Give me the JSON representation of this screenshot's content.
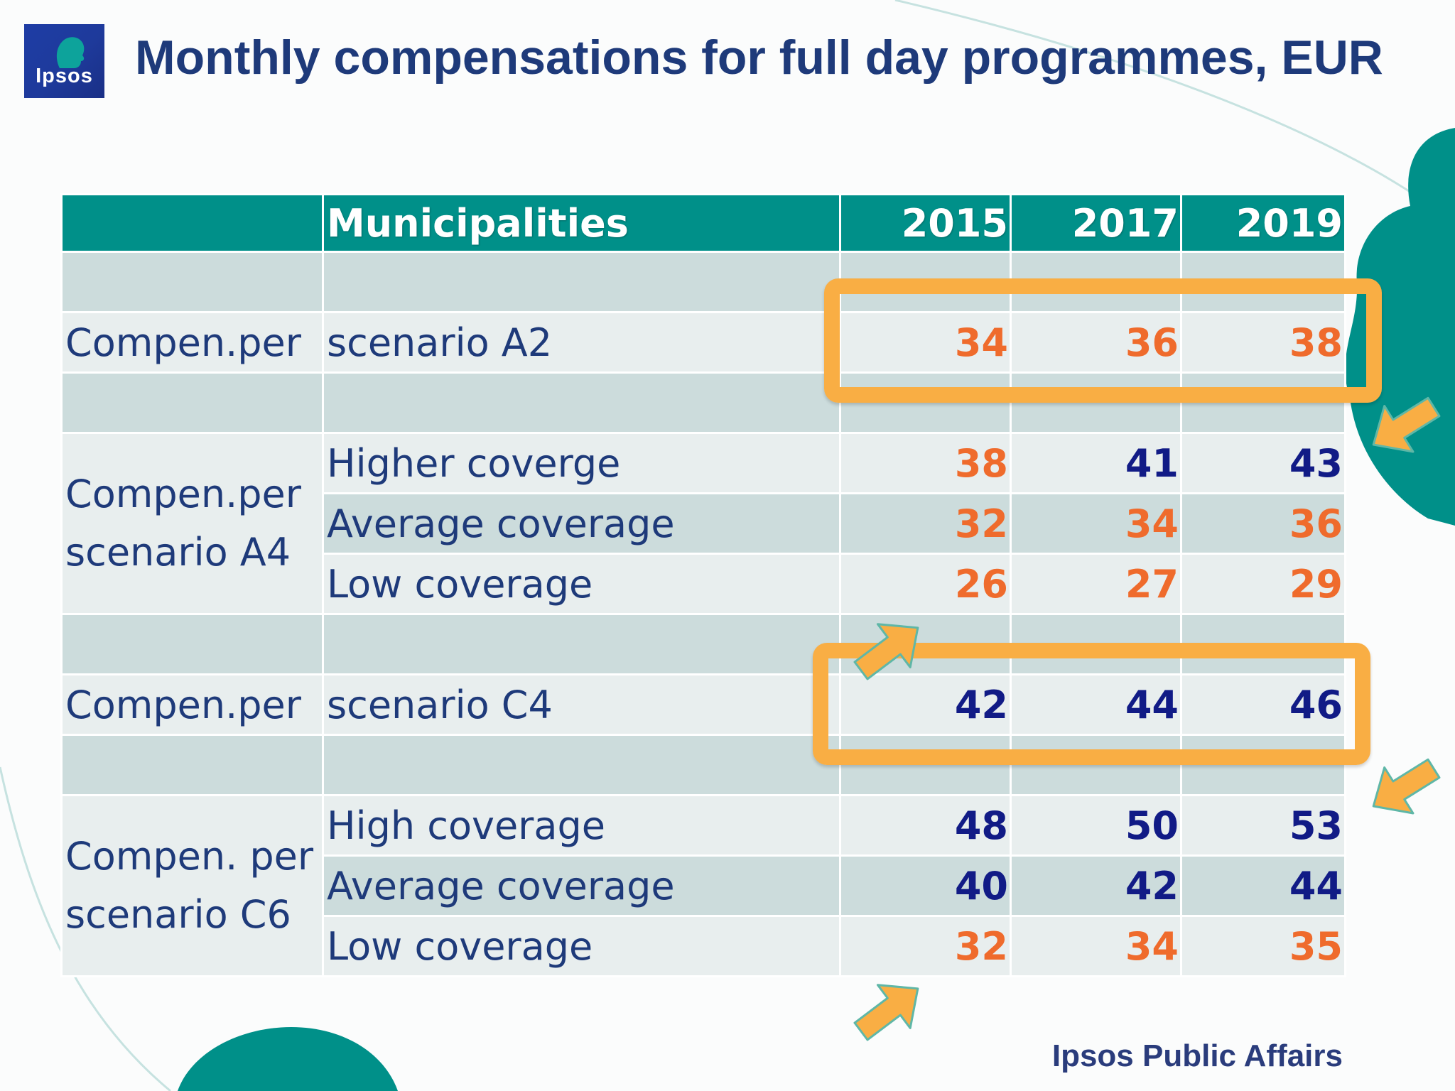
{
  "slide": {
    "title": "Monthly compensations for full day programmes, EUR",
    "footer": "Ipsos Public Affairs"
  },
  "logo": {
    "text": "Ipsos"
  },
  "colors": {
    "header_teal": "#009089",
    "row_dark": "#ccdcdc",
    "row_light": "#e8eeee",
    "value_orange": "#ef6b2c",
    "value_navy": "#111b86",
    "highlight": "#f9ae44",
    "text_blue": "#1e3a7a"
  },
  "table": {
    "headers": [
      "",
      "Municipalities",
      "2015",
      "2017",
      "2019"
    ],
    "scenario_a2": {
      "label": "Compen.per",
      "name": "scenario A2",
      "values": [
        "34",
        "36",
        "38"
      ],
      "colors": [
        "orange",
        "orange",
        "orange"
      ]
    },
    "scenario_a4": {
      "label_line1": "Compen.per",
      "label_line2": "scenario A4",
      "rows": [
        {
          "name": "Higher coverge",
          "values": [
            "38",
            "41",
            "43"
          ],
          "colors": [
            "orange",
            "navy",
            "navy"
          ]
        },
        {
          "name": "Average coverage",
          "values": [
            "32",
            "34",
            "36"
          ],
          "colors": [
            "orange",
            "orange",
            "orange"
          ]
        },
        {
          "name": "Low coverage",
          "values": [
            "26",
            "27",
            "29"
          ],
          "colors": [
            "orange",
            "orange",
            "orange"
          ]
        }
      ]
    },
    "scenario_c4": {
      "label": "Compen.per",
      "name": "scenario C4",
      "values": [
        "42",
        "44",
        "46"
      ],
      "colors": [
        "navy",
        "navy",
        "navy"
      ]
    },
    "scenario_c6": {
      "label_line1": "Compen. per",
      "label_line2": "scenario C6",
      "rows": [
        {
          "name": "High coverage",
          "values": [
            "48",
            "50",
            "53"
          ],
          "colors": [
            "navy",
            "navy",
            "navy"
          ]
        },
        {
          "name": "Average coverage",
          "values": [
            "40",
            "42",
            "44"
          ],
          "colors": [
            "navy",
            "navy",
            "navy"
          ]
        },
        {
          "name": "Low coverage",
          "values": [
            "32",
            "34",
            "35"
          ],
          "colors": [
            "orange",
            "orange",
            "orange"
          ]
        }
      ]
    }
  },
  "highlights": [
    {
      "target": "scenario A2",
      "shape": "rounded-box"
    },
    {
      "target": "scenario C4",
      "shape": "rounded-box"
    }
  ],
  "arrow_icons": [
    "arrow-icon",
    "arrow-icon",
    "arrow-icon",
    "arrow-icon"
  ]
}
